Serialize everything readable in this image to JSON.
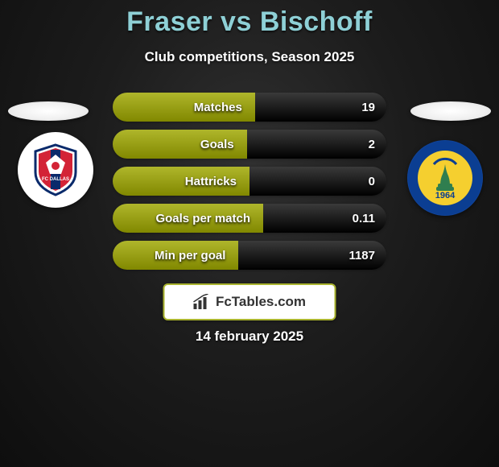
{
  "title": "Fraser vs Bischoff",
  "subtitle": "Club competitions, Season 2025",
  "title_color": "#8ed0d6",
  "accent_olive": "#afb62b",
  "accent_dark": "#3a3a3a",
  "rows": [
    {
      "label": "Matches",
      "value": "19",
      "left_pct": 52,
      "left_color": "#afb62b",
      "right_color": "#3a3a3a"
    },
    {
      "label": "Goals",
      "value": "2",
      "left_pct": 49,
      "left_color": "#afb62b",
      "right_color": "#3a3a3a"
    },
    {
      "label": "Hattricks",
      "value": "0",
      "left_pct": 50,
      "left_color": "#afb62b",
      "right_color": "#3a3a3a"
    },
    {
      "label": "Goals per match",
      "value": "0.11",
      "left_pct": 55,
      "left_color": "#afb62b",
      "right_color": "#3a3a3a"
    },
    {
      "label": "Min per goal",
      "value": "1187",
      "left_pct": 46,
      "left_color": "#afb62b",
      "right_color": "#3a3a3a"
    }
  ],
  "fctables_label": "FcTables.com",
  "date": "14 february 2025",
  "club_left": {
    "name": "fc-dallas",
    "shield_fill": "#ffffff",
    "stripe": "#d32336",
    "border": "#0a2a6b",
    "text": "FC DALLAS"
  },
  "club_right": {
    "name": "brondby",
    "ring": "#0b3e92",
    "inner": "#f5cf2f",
    "tower": "#2f7e4f",
    "year": "1964"
  }
}
